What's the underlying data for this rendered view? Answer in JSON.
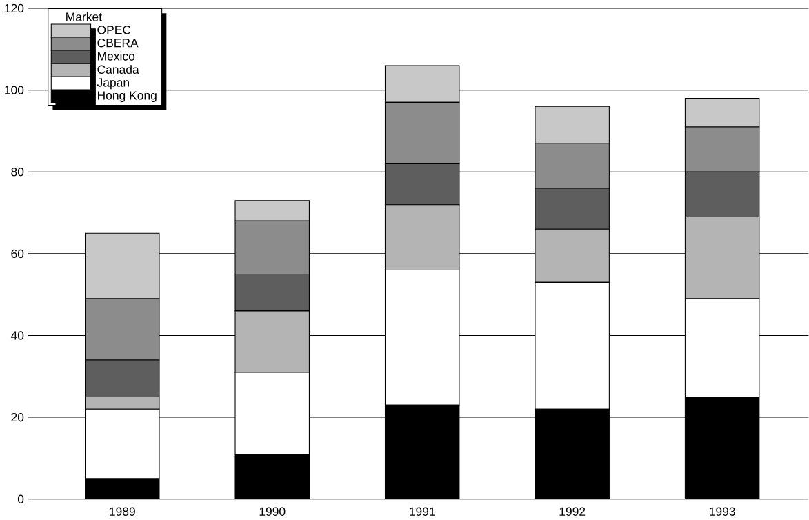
{
  "chart_data": {
    "type": "bar",
    "stacked": true,
    "legend_title": "Market",
    "legend": "top left",
    "categories": [
      "1989",
      "1990",
      "1991",
      "1992",
      "1993"
    ],
    "series": [
      {
        "name": "Hong Kong",
        "color": "#000000",
        "values": [
          5,
          11,
          23,
          22,
          25
        ]
      },
      {
        "name": "Japan",
        "color": "#ffffff",
        "values": [
          17,
          20,
          33,
          31,
          24
        ]
      },
      {
        "name": "Canada",
        "color": "#b4b4b4",
        "values": [
          3,
          15,
          16,
          13,
          20
        ]
      },
      {
        "name": "Mexico",
        "color": "#5e5e5e",
        "values": [
          9,
          9,
          10,
          10,
          11
        ]
      },
      {
        "name": "CBERA",
        "color": "#8c8c8c",
        "values": [
          15,
          13,
          15,
          11,
          11
        ]
      },
      {
        "name": "OPEC",
        "color": "#c8c8c8",
        "values": [
          16,
          5,
          9,
          9,
          7
        ]
      }
    ],
    "ylim": [
      0,
      120
    ],
    "yticks": [
      0,
      20,
      40,
      60,
      80,
      100,
      120
    ],
    "grid": "y"
  }
}
